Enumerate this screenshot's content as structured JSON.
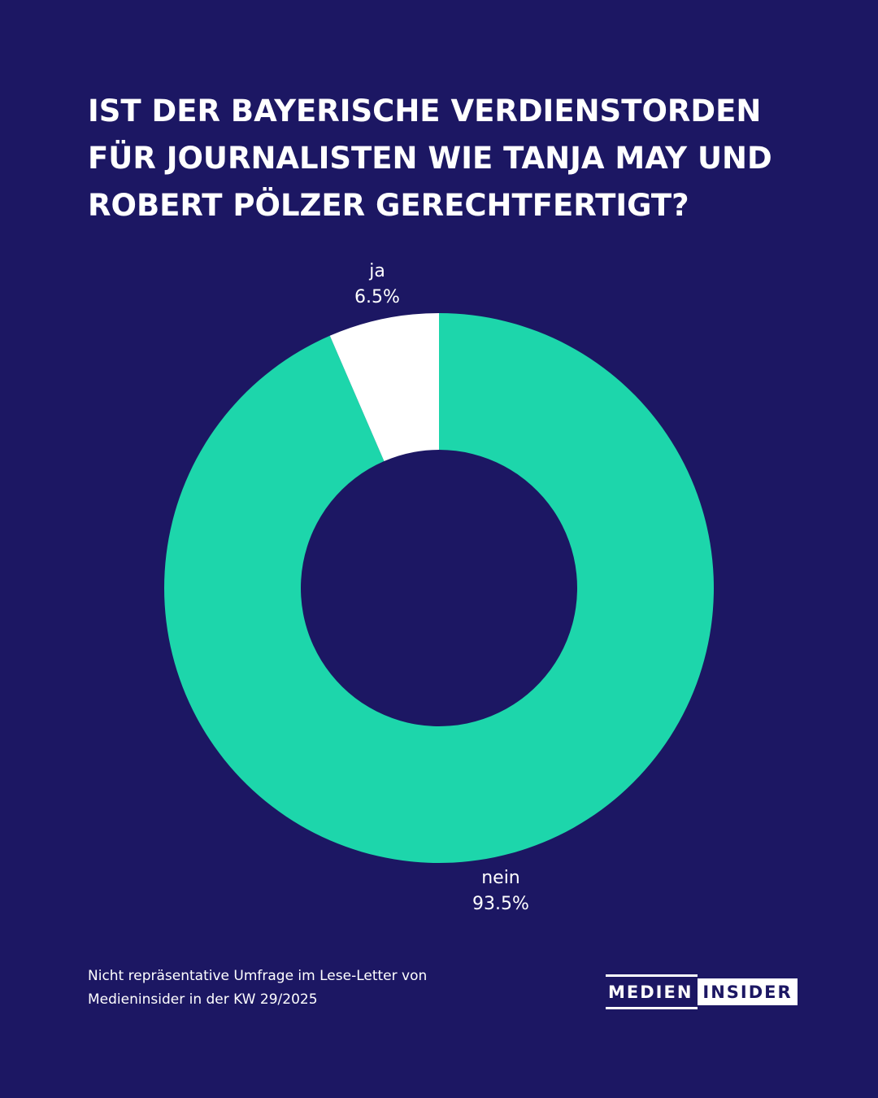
{
  "title_lines": [
    "IST DER BAYERISCHE VERDIENSTORDEN",
    "FÜR JOURNALISTEN WIE TANJA MAY UND",
    "ROBERT PÖLZER GERECHTFERTIGT?"
  ],
  "colors": {
    "background": "#1c1763",
    "nein": "#1dd6ab",
    "ja": "#ffffff"
  },
  "chart_data": {
    "type": "pie",
    "variant": "donut",
    "title": "IST DER BAYERISCHE VERDIENSTORDEN FÜR JOURNALISTEN WIE TANJA MAY UND ROBERT PÖLZER GERECHTFERTIGT?",
    "categories": [
      "ja",
      "nein"
    ],
    "values": [
      6.5,
      93.5
    ],
    "value_labels": [
      "6.5%",
      "93.5%"
    ],
    "unit": "%",
    "legend": "none"
  },
  "labels": {
    "ja": {
      "name": "ja",
      "value": "6.5%"
    },
    "nein": {
      "name": "nein",
      "value": "93.5%"
    }
  },
  "footnote": {
    "line1": "Nicht repräsentative Umfrage im Lese-Letter von",
    "line2": "Medieninsider in der KW 29/2025"
  },
  "logo": {
    "left": "MEDIEN",
    "right": "INSIDER"
  }
}
